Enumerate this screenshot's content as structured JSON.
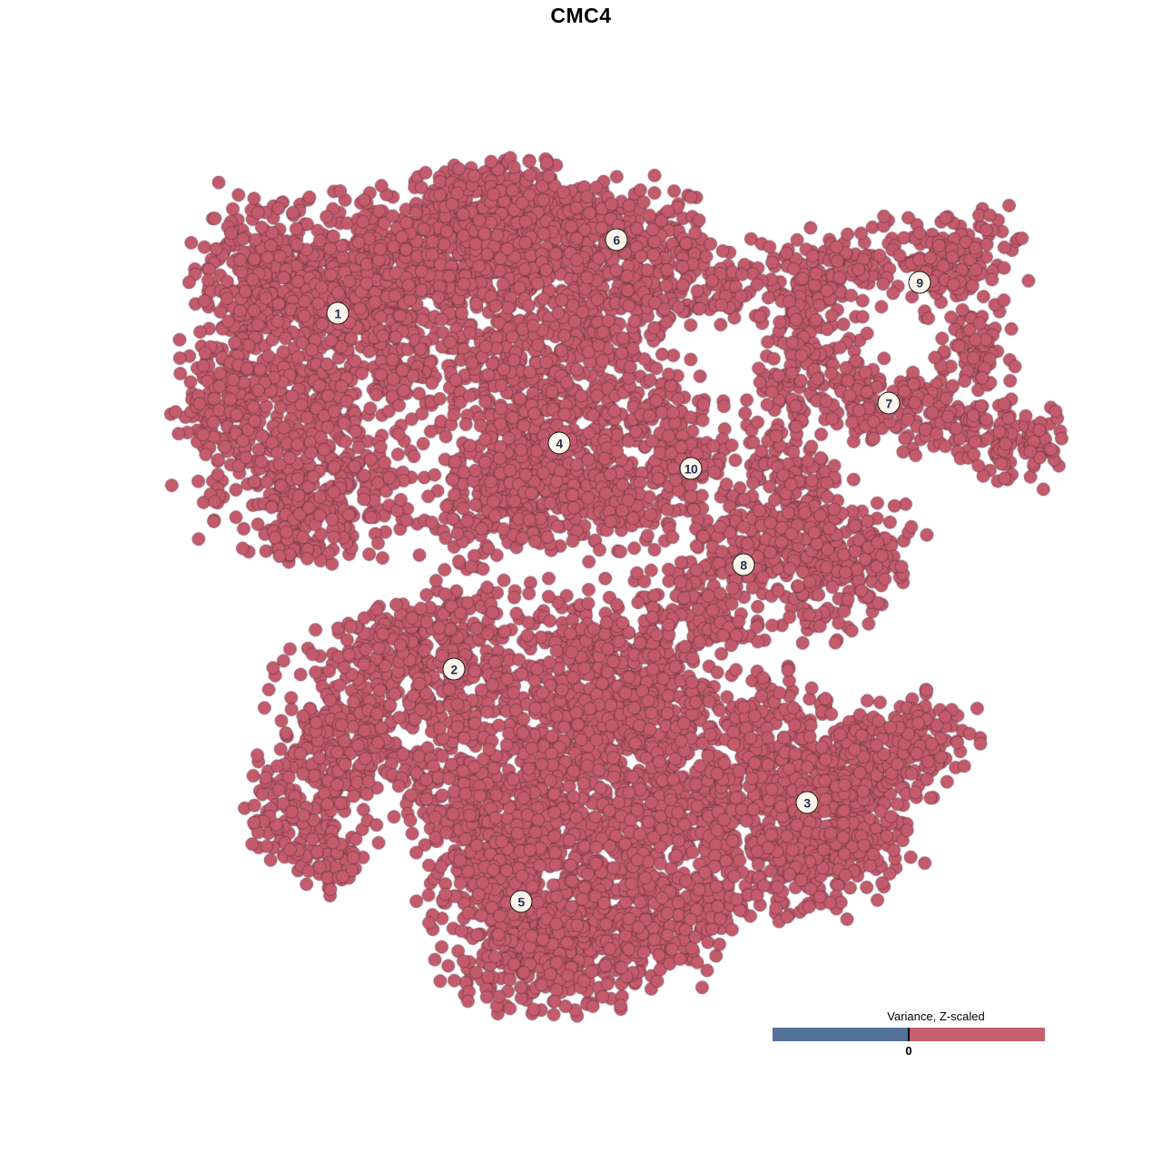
{
  "title": "CMC4",
  "legend": {
    "title": "Variance, Z-scaled",
    "tick_label": "0",
    "negative_color": "#54719a",
    "positive_color": "#c5606f",
    "divider_color": "#000000"
  },
  "chart_data": {
    "type": "scatter",
    "title": "CMC4",
    "style": "UMAP/t-SNE embedding, single-color cell scatter",
    "point_color": "#c45b6c",
    "point_edge_color": "rgba(80,42,52,0.55)",
    "point_radius": 7,
    "axis": {
      "grid": false,
      "axes_shown": false,
      "xlim": [
        0,
        1280
      ],
      "ylim": [
        0,
        1280
      ]
    },
    "clusters": [
      {
        "label": "1",
        "x": 372,
        "y": 345
      },
      {
        "label": "2",
        "x": 500,
        "y": 737
      },
      {
        "label": "3",
        "x": 889,
        "y": 884
      },
      {
        "label": "4",
        "x": 616,
        "y": 488
      },
      {
        "label": "5",
        "x": 574,
        "y": 993
      },
      {
        "label": "6",
        "x": 679,
        "y": 264
      },
      {
        "label": "7",
        "x": 979,
        "y": 444
      },
      {
        "label": "8",
        "x": 819,
        "y": 622
      },
      {
        "label": "9",
        "x": 1013,
        "y": 311
      },
      {
        "label": "10",
        "x": 761,
        "y": 516
      }
    ],
    "blobs": [
      [
        330,
        295,
        55,
        42,
        300
      ],
      [
        350,
        420,
        55,
        50,
        320
      ],
      [
        262,
        350,
        30,
        55,
        150
      ],
      [
        237,
        445,
        22,
        40,
        80
      ],
      [
        300,
        520,
        40,
        40,
        150
      ],
      [
        375,
        545,
        40,
        35,
        150
      ],
      [
        335,
        590,
        25,
        18,
        60
      ],
      [
        425,
        330,
        45,
        45,
        200
      ],
      [
        470,
        258,
        48,
        34,
        200,
        -0.1
      ],
      [
        548,
        248,
        45,
        33,
        200,
        -0.1
      ],
      [
        545,
        200,
        28,
        13,
        50
      ],
      [
        625,
        255,
        45,
        36,
        220
      ],
      [
        695,
        262,
        38,
        31,
        160
      ],
      [
        758,
        300,
        32,
        28,
        70
      ],
      [
        800,
        322,
        17,
        17,
        25
      ],
      [
        505,
        310,
        38,
        30,
        120
      ],
      [
        590,
        332,
        42,
        30,
        110
      ],
      [
        650,
        362,
        38,
        32,
        110
      ],
      [
        706,
        336,
        30,
        28,
        70
      ],
      [
        465,
        420,
        28,
        35,
        60
      ],
      [
        545,
        395,
        30,
        24,
        60
      ],
      [
        600,
        432,
        38,
        30,
        120
      ],
      [
        592,
        500,
        52,
        48,
        340
      ],
      [
        552,
        560,
        40,
        32,
        150
      ],
      [
        645,
        545,
        32,
        30,
        100
      ],
      [
        682,
        470,
        28,
        35,
        70
      ],
      [
        731,
        441,
        24,
        30,
        50
      ],
      [
        762,
        516,
        28,
        33,
        140
      ],
      [
        696,
        562,
        20,
        20,
        35
      ],
      [
        955,
        292,
        78,
        26,
        200,
        -0.18
      ],
      [
        1056,
        300,
        24,
        32,
        80
      ],
      [
        890,
        356,
        30,
        28,
        80
      ],
      [
        1071,
        392,
        22,
        35,
        70
      ],
      [
        992,
        451,
        80,
        23,
        210,
        0.22
      ],
      [
        880,
        426,
        28,
        28,
        55
      ],
      [
        1116,
        488,
        30,
        21,
        70,
        0.3
      ],
      [
        1150,
        478,
        13,
        13,
        15
      ],
      [
        862,
        278,
        5,
        5,
        2
      ],
      [
        858,
        520,
        30,
        32,
        90
      ],
      [
        852,
        592,
        38,
        32,
        130
      ],
      [
        916,
        642,
        38,
        38,
        130
      ],
      [
        958,
        606,
        28,
        26,
        70
      ],
      [
        796,
        626,
        35,
        28,
        90
      ],
      [
        746,
        672,
        28,
        22,
        45
      ],
      [
        900,
        560,
        24,
        24,
        50
      ],
      [
        640,
        642,
        100,
        42,
        40
      ],
      [
        480,
        638,
        40,
        16,
        8
      ],
      [
        400,
        790,
        52,
        48,
        260
      ],
      [
        478,
        728,
        40,
        32,
        130
      ],
      [
        362,
        852,
        38,
        32,
        130
      ],
      [
        328,
        915,
        30,
        26,
        70
      ],
      [
        368,
        950,
        25,
        19,
        45
      ],
      [
        560,
        775,
        48,
        42,
        170
      ],
      [
        642,
        738,
        45,
        38,
        180
      ],
      [
        722,
        768,
        45,
        38,
        200
      ],
      [
        685,
        845,
        50,
        45,
        260
      ],
      [
        602,
        872,
        45,
        40,
        220
      ],
      [
        772,
        882,
        45,
        40,
        220
      ],
      [
        845,
        818,
        45,
        38,
        200
      ],
      [
        895,
        885,
        48,
        42,
        260
      ],
      [
        952,
        840,
        38,
        32,
        150
      ],
      [
        1014,
        812,
        32,
        25,
        90,
        0.2
      ],
      [
        938,
        928,
        38,
        30,
        130
      ],
      [
        862,
        952,
        38,
        30,
        130
      ],
      [
        592,
        988,
        55,
        48,
        340
      ],
      [
        540,
        938,
        40,
        35,
        170
      ],
      [
        652,
        1040,
        45,
        36,
        220
      ],
      [
        585,
        1062,
        38,
        25,
        130
      ],
      [
        700,
        962,
        40,
        38,
        160
      ],
      [
        742,
        1028,
        30,
        28,
        70
      ],
      [
        505,
        878,
        35,
        30,
        110
      ],
      [
        432,
        705,
        32,
        20,
        60
      ],
      [
        528,
        682,
        45,
        18,
        45
      ],
      [
        688,
        690,
        45,
        18,
        45
      ],
      [
        790,
        688,
        28,
        18,
        40
      ],
      [
        772,
        1005,
        25,
        22,
        40
      ],
      [
        808,
        980,
        20,
        16,
        25
      ]
    ]
  }
}
